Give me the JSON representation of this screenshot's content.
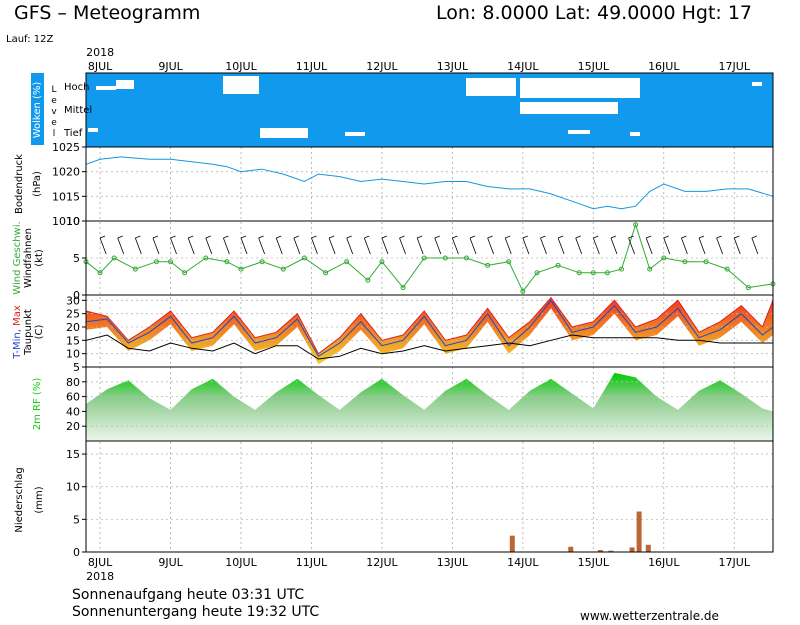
{
  "header": {
    "title": "GFS – Meteogramm",
    "coords": "Lon: 8.0000  Lat: 49.0000  Hgt: 17",
    "run": "Lauf: 12Z"
  },
  "footer": {
    "sunrise": "Sonnenaufgang heute 03:31 UTC",
    "sunset": "Sonnenuntergang heute 19:32 UTC",
    "site": "www.wetterzentrale.de"
  },
  "colors": {
    "cloud_bg": "#1199ee",
    "pressure": "#1199dd",
    "wind": "#33aa33",
    "tmin": "#2244cc",
    "tmax": "#dd2222",
    "dewpoint": "#000000",
    "humidity": "#11cc11",
    "precip": "#bb6633",
    "temp_fill_low": "#f2d02a",
    "temp_fill_high": "#f03a1e"
  },
  "chart_data": {
    "type": "meteogram",
    "year": "2018",
    "time_axis": {
      "day_labels": [
        "8JUL",
        "9JUL",
        "10JUL",
        "11JUL",
        "12JUL",
        "13JUL",
        "14JUL",
        "15JUL",
        "16JUL",
        "17JUL"
      ],
      "start_day": 7.8,
      "end_day": 17.55
    },
    "clouds": {
      "ylabel": "Wolken (%)",
      "side_label": "Level",
      "levels": [
        "Hoch",
        "Mittel",
        "Tief"
      ]
    },
    "pressure": {
      "ylabel": "Bodendruck",
      "unit": "(hPa)",
      "ticks": [
        1010,
        1015,
        1020,
        1025
      ],
      "ylim": [
        1010,
        1025
      ],
      "x": [
        7.8,
        8.0,
        8.3,
        8.7,
        9.0,
        9.3,
        9.6,
        9.8,
        10.0,
        10.3,
        10.6,
        10.9,
        11.1,
        11.4,
        11.7,
        12.0,
        12.3,
        12.6,
        12.9,
        13.2,
        13.5,
        13.8,
        14.1,
        14.4,
        14.6,
        14.8,
        15.0,
        15.2,
        15.4,
        15.6,
        15.8,
        16.0,
        16.3,
        16.6,
        16.9,
        17.2,
        17.55
      ],
      "values": [
        1021.5,
        1022.5,
        1023,
        1022.5,
        1022.5,
        1022,
        1021.5,
        1021,
        1020,
        1020.5,
        1019.5,
        1018,
        1019.5,
        1019,
        1018,
        1018.5,
        1018,
        1017.5,
        1018,
        1018,
        1017,
        1016.5,
        1016.5,
        1015.5,
        1014.5,
        1013.5,
        1012.5,
        1013,
        1012.5,
        1013,
        1016,
        1017.5,
        1016,
        1016,
        1016.5,
        1016.5,
        1015
      ]
    },
    "wind": {
      "ylabel": "Wind Geschwi.",
      "sublabel": "Windfahnen",
      "unit": "(kt)",
      "ticks": [
        0,
        5,
        10
      ],
      "ylim": [
        0,
        10
      ],
      "x": [
        7.8,
        8.0,
        8.2,
        8.5,
        8.8,
        9.0,
        9.2,
        9.5,
        9.8,
        10.0,
        10.3,
        10.6,
        10.9,
        11.2,
        11.5,
        11.8,
        12.0,
        12.3,
        12.6,
        12.9,
        13.2,
        13.5,
        13.8,
        14.0,
        14.2,
        14.5,
        14.8,
        15.0,
        15.2,
        15.4,
        15.6,
        15.8,
        16.0,
        16.3,
        16.6,
        16.9,
        17.2,
        17.55
      ],
      "values": [
        4.5,
        3,
        5,
        3.5,
        4.5,
        4.5,
        3,
        5,
        4.5,
        3.5,
        4.5,
        3.5,
        5,
        3,
        4.5,
        2,
        4.5,
        1,
        5,
        5,
        5,
        4,
        4.5,
        0.5,
        3,
        4,
        3,
        3,
        3,
        3.5,
        9.5,
        3.5,
        5,
        4.5,
        4.5,
        3.5,
        1,
        1.5
      ]
    },
    "temperature": {
      "ylabel_parts": [
        "T-Min,",
        "Max"
      ],
      "sublabel": "Taupunkt",
      "unit": "(C)",
      "ticks": [
        5,
        10,
        15,
        20,
        25,
        30
      ],
      "ylim": [
        5,
        32
      ],
      "x": [
        7.8,
        8.1,
        8.4,
        8.7,
        9.0,
        9.3,
        9.6,
        9.9,
        10.2,
        10.5,
        10.8,
        11.1,
        11.4,
        11.7,
        12.0,
        12.3,
        12.6,
        12.9,
        13.2,
        13.5,
        13.8,
        14.1,
        14.4,
        14.7,
        15.0,
        15.3,
        15.6,
        15.9,
        16.2,
        16.5,
        16.8,
        17.1,
        17.4,
        17.55
      ],
      "tmin": [
        22,
        23,
        14,
        18,
        24,
        14,
        16,
        24,
        14,
        16,
        23,
        9,
        14,
        22,
        13,
        15,
        24,
        13,
        15,
        25,
        13,
        20,
        30,
        18,
        20,
        28,
        18,
        20,
        27,
        16,
        19,
        25,
        17,
        20
      ],
      "tmax": [
        26,
        24,
        15,
        20,
        26,
        16,
        18,
        26,
        16,
        18,
        25,
        10,
        16,
        25,
        15,
        17,
        26,
        15,
        17,
        27,
        16,
        22,
        31,
        20,
        22,
        30,
        20,
        23,
        30,
        18,
        22,
        28,
        20,
        30
      ],
      "dewpoint": [
        15,
        17,
        12,
        11,
        14,
        12,
        11,
        14,
        10,
        13,
        13,
        8,
        9,
        12,
        10,
        11,
        13,
        11,
        12,
        13,
        14,
        13,
        15,
        17,
        16,
        16,
        16,
        16,
        15,
        15,
        14,
        14,
        14,
        14
      ]
    },
    "humidity": {
      "ylabel": "2m RF (%)",
      "ticks": [
        20,
        40,
        60,
        80
      ],
      "ylim": [
        0,
        100
      ],
      "x": [
        7.8,
        8.1,
        8.4,
        8.7,
        9.0,
        9.3,
        9.6,
        9.9,
        10.2,
        10.5,
        10.8,
        11.1,
        11.4,
        11.7,
        12.0,
        12.3,
        12.6,
        12.9,
        13.2,
        13.5,
        13.8,
        14.1,
        14.4,
        14.7,
        15.0,
        15.3,
        15.6,
        15.9,
        16.2,
        16.5,
        16.8,
        17.1,
        17.4,
        17.55
      ],
      "values": [
        50,
        70,
        82,
        58,
        42,
        70,
        84,
        60,
        42,
        66,
        84,
        62,
        42,
        66,
        84,
        62,
        42,
        68,
        84,
        62,
        42,
        68,
        84,
        64,
        44,
        92,
        86,
        60,
        42,
        68,
        82,
        64,
        44,
        40
      ]
    },
    "precipitation": {
      "ylabel": "Niederschlag",
      "unit": "(mm)",
      "ticks": [
        0,
        5,
        10,
        15
      ],
      "ylim": [
        0,
        17
      ],
      "x": [
        13.85,
        14.68,
        15.1,
        15.25,
        15.55,
        15.65,
        15.78
      ],
      "values": [
        2.5,
        0.8,
        0.3,
        0.2,
        0.7,
        6.2,
        1.1
      ]
    }
  }
}
